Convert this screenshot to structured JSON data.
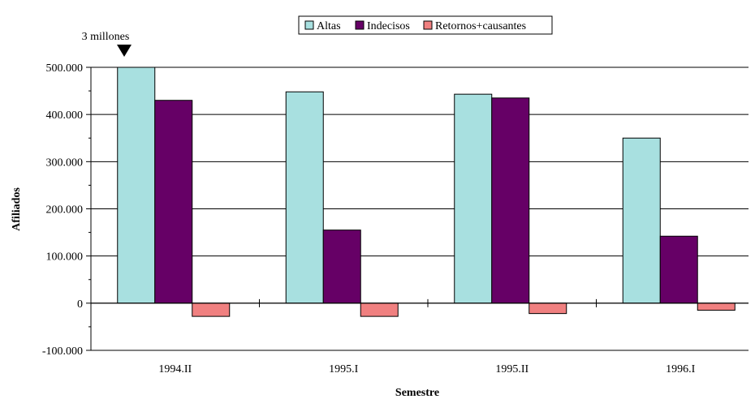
{
  "chart_data": {
    "type": "bar",
    "categories": [
      "1994.II",
      "1995.I",
      "1995.II",
      "1996.I"
    ],
    "series": [
      {
        "name": "Altas",
        "color": "#a8e0e0",
        "values": [
          500000,
          448000,
          443000,
          350000
        ]
      },
      {
        "name": "Indecisos",
        "color": "#660066",
        "values": [
          430000,
          155000,
          435000,
          142000
        ]
      },
      {
        "name": "Retornos+causantes",
        "color": "#f08080",
        "values": [
          -28000,
          -28000,
          -22000,
          -15000
        ]
      }
    ],
    "xlabel": "Semestre",
    "ylabel": "Afiliados",
    "ylim": [
      -100000,
      500000
    ],
    "yticks": [
      -100000,
      0,
      100000,
      200000,
      300000,
      400000,
      500000
    ],
    "ytick_labels": [
      "-100.000",
      "0",
      "100.000",
      "200.000",
      "300.000",
      "400.000",
      "500.000"
    ],
    "grid": true,
    "legend_position": "top-center",
    "annotation": {
      "text": "3 millones",
      "icon": "down-triangle-icon"
    }
  }
}
